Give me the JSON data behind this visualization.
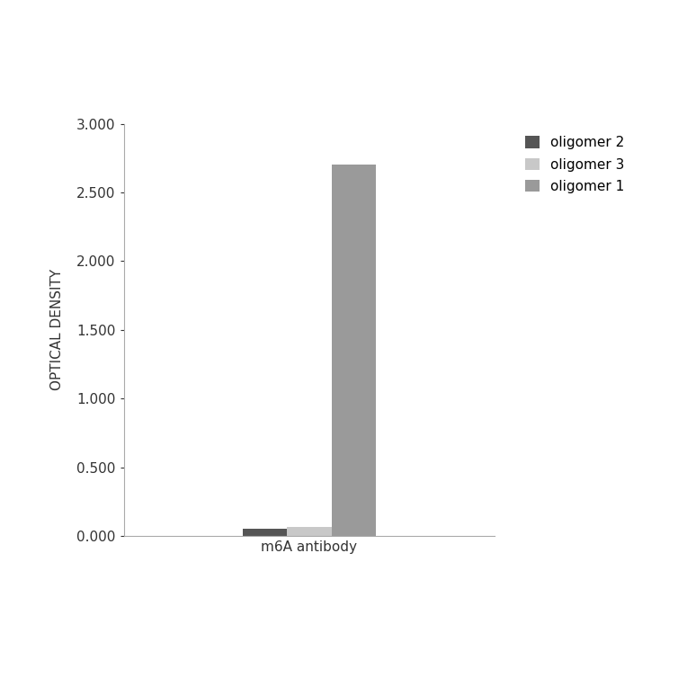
{
  "categories": [
    "m6A antibody"
  ],
  "series": [
    {
      "label": "oligomer 2",
      "values": [
        0.055
      ],
      "color": "#555555"
    },
    {
      "label": "oligomer 3",
      "values": [
        0.062
      ],
      "color": "#c8c8c8"
    },
    {
      "label": "oligomer 1",
      "values": [
        2.7
      ],
      "color": "#9a9a9a"
    }
  ],
  "ylabel": "OPTICAL DENSITY",
  "xlabel": "m6A antibody",
  "ylim": [
    0,
    3.0
  ],
  "yticks": [
    0.0,
    0.5,
    1.0,
    1.5,
    2.0,
    2.5,
    3.0
  ],
  "bar_width": 0.12,
  "bar_gap": 0.0,
  "background_color": "#ffffff",
  "axis_fontsize": 11,
  "tick_fontsize": 11,
  "legend_fontsize": 11
}
